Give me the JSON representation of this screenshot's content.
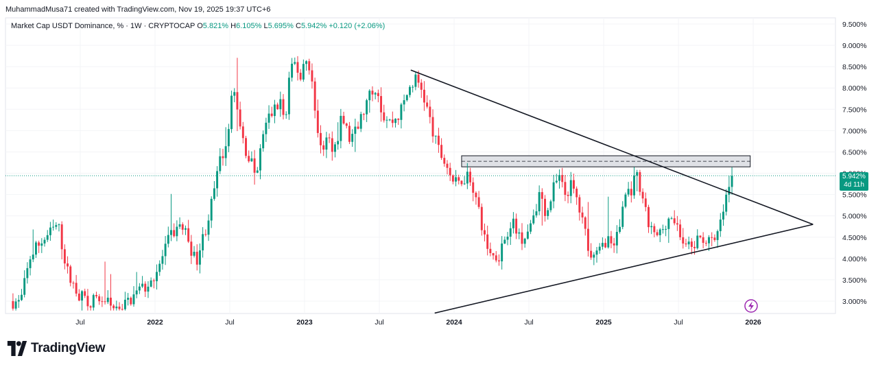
{
  "credit": "MuhammadMusa71 created with TradingView.com, Nov 19, 2025 19:37 UTC+6",
  "legend": {
    "symbol": "Market Cap USDT Dominance, % · 1W · CRYPTOCAP",
    "open_label": "O",
    "open": "5.821%",
    "high_label": "H",
    "high": "6.105%",
    "low_label": "L",
    "low": "5.695%",
    "close_label": "C",
    "close": "5.942%",
    "change": "+0.120 (+2.06%)"
  },
  "price_badge": {
    "price": "5.942%",
    "countdown": "4d 11h"
  },
  "brand": "TradingView",
  "colors": {
    "up": "#089981",
    "down": "#f23645",
    "line": "#131722",
    "zone_fill": "#d1d4dc",
    "lightning": "#9c27b0"
  },
  "icons": {
    "lightning": "lightning-icon",
    "logo": "tradingview-logo-icon"
  },
  "chart_data": {
    "type": "candlestick",
    "title": "Market Cap USDT Dominance, % · 1W · CRYPTOCAP",
    "y_unit": "%",
    "ylim": [
      2.8,
      9.75
    ],
    "y_ticks": [
      "9.500%",
      "9.000%",
      "8.500%",
      "8.000%",
      "7.500%",
      "7.000%",
      "6.500%",
      "6.000%",
      "5.500%",
      "5.000%",
      "4.500%",
      "4.000%",
      "3.500%",
      "3.000%"
    ],
    "y_tick_values": [
      9.5,
      9.0,
      8.5,
      8.0,
      7.5,
      7.0,
      6.5,
      6.0,
      5.5,
      5.0,
      4.5,
      4.0,
      3.5,
      3.0
    ],
    "x_ticks": [
      {
        "label": "Jul",
        "t": 2021.5,
        "bold": false
      },
      {
        "label": "2022",
        "t": 2022.0,
        "bold": true
      },
      {
        "label": "Jul",
        "t": 2022.5,
        "bold": false
      },
      {
        "label": "2023",
        "t": 2023.0,
        "bold": true
      },
      {
        "label": "Jul",
        "t": 2023.5,
        "bold": false
      },
      {
        "label": "2024",
        "t": 2024.0,
        "bold": true
      },
      {
        "label": "Jul",
        "t": 2024.5,
        "bold": false
      },
      {
        "label": "2025",
        "t": 2025.0,
        "bold": true
      },
      {
        "label": "Jul",
        "t": 2025.5,
        "bold": false
      },
      {
        "label": "2026",
        "t": 2026.0,
        "bold": true
      }
    ],
    "xlim": [
      2021.0,
      2026.55
    ],
    "last_price": 5.942,
    "path_start": 2021.05,
    "path_end": 2025.87,
    "path": [
      [
        2021.05,
        3.0
      ],
      [
        2021.1,
        2.95
      ],
      [
        2021.17,
        4.1
      ],
      [
        2021.24,
        4.4
      ],
      [
        2021.3,
        4.6
      ],
      [
        2021.35,
        4.8
      ],
      [
        2021.42,
        3.6
      ],
      [
        2021.5,
        3.1
      ],
      [
        2021.58,
        3.0
      ],
      [
        2021.65,
        3.05
      ],
      [
        2021.72,
        2.85
      ],
      [
        2021.8,
        2.92
      ],
      [
        2021.88,
        3.2
      ],
      [
        2021.95,
        3.4
      ],
      [
        2022.02,
        3.75
      ],
      [
        2022.1,
        4.5
      ],
      [
        2022.17,
        4.8
      ],
      [
        2022.22,
        4.5
      ],
      [
        2022.27,
        3.9
      ],
      [
        2022.33,
        4.6
      ],
      [
        2022.38,
        5.3
      ],
      [
        2022.43,
        6.2
      ],
      [
        2022.48,
        6.8
      ],
      [
        2022.52,
        8.1
      ],
      [
        2022.56,
        7.2
      ],
      [
        2022.6,
        6.6
      ],
      [
        2022.65,
        6.2
      ],
      [
        2022.68,
        5.9
      ],
      [
        2022.72,
        6.9
      ],
      [
        2022.76,
        7.3
      ],
      [
        2022.8,
        7.5
      ],
      [
        2022.84,
        7.7
      ],
      [
        2022.87,
        7.1
      ],
      [
        2022.9,
        8.3
      ],
      [
        2022.94,
        8.6
      ],
      [
        2022.97,
        8.2
      ],
      [
        2023.0,
        8.7
      ],
      [
        2023.04,
        8.5
      ],
      [
        2023.08,
        7.0
      ],
      [
        2023.12,
        6.6
      ],
      [
        2023.15,
        6.8
      ],
      [
        2023.2,
        6.6
      ],
      [
        2023.25,
        7.3
      ],
      [
        2023.3,
        6.8
      ],
      [
        2023.35,
        7.0
      ],
      [
        2023.4,
        7.5
      ],
      [
        2023.45,
        7.9
      ],
      [
        2023.48,
        8.1
      ],
      [
        2023.52,
        7.4
      ],
      [
        2023.57,
        7.2
      ],
      [
        2023.62,
        7.3
      ],
      [
        2023.66,
        7.6
      ],
      [
        2023.7,
        8.0
      ],
      [
        2023.74,
        8.2
      ],
      [
        2023.78,
        8.0
      ],
      [
        2023.82,
        7.5
      ],
      [
        2023.86,
        6.9
      ],
      [
        2023.9,
        6.5
      ],
      [
        2023.95,
        6.2
      ],
      [
        2023.98,
        5.9
      ],
      [
        2024.02,
        5.7
      ],
      [
        2024.06,
        5.9
      ],
      [
        2024.1,
        6.0
      ],
      [
        2024.14,
        5.5
      ],
      [
        2024.18,
        4.8
      ],
      [
        2024.22,
        4.3
      ],
      [
        2024.26,
        4.05
      ],
      [
        2024.3,
        4.1
      ],
      [
        2024.34,
        4.5
      ],
      [
        2024.38,
        4.9
      ],
      [
        2024.42,
        4.6
      ],
      [
        2024.46,
        4.5
      ],
      [
        2024.5,
        4.7
      ],
      [
        2024.54,
        5.2
      ],
      [
        2024.58,
        5.5
      ],
      [
        2024.62,
        5.0
      ],
      [
        2024.66,
        5.6
      ],
      [
        2024.7,
        5.9
      ],
      [
        2024.74,
        5.5
      ],
      [
        2024.78,
        5.7
      ],
      [
        2024.82,
        5.4
      ],
      [
        2024.86,
        4.8
      ],
      [
        2024.9,
        4.3
      ],
      [
        2024.94,
        4.0
      ],
      [
        2024.98,
        4.2
      ],
      [
        2025.02,
        4.5
      ],
      [
        2025.06,
        4.3
      ],
      [
        2025.1,
        4.6
      ],
      [
        2025.14,
        5.5
      ],
      [
        2025.18,
        5.6
      ],
      [
        2025.22,
        5.9
      ],
      [
        2025.26,
        5.3
      ],
      [
        2025.3,
        4.8
      ],
      [
        2025.34,
        4.5
      ],
      [
        2025.38,
        4.6
      ],
      [
        2025.42,
        4.9
      ],
      [
        2025.46,
        5.0
      ],
      [
        2025.5,
        4.7
      ],
      [
        2025.54,
        4.3
      ],
      [
        2025.58,
        4.2
      ],
      [
        2025.62,
        4.4
      ],
      [
        2025.66,
        4.5
      ],
      [
        2025.7,
        4.4
      ],
      [
        2025.74,
        4.3
      ],
      [
        2025.78,
        4.8
      ],
      [
        2025.82,
        5.4
      ],
      [
        2025.85,
        5.8
      ],
      [
        2025.87,
        5.942
      ]
    ],
    "trendlines": [
      {
        "name": "descending-trendline",
        "points": [
          [
            2023.71,
            8.42
          ],
          [
            2026.4,
            4.8
          ]
        ]
      },
      {
        "name": "ascending-trendline",
        "points": [
          [
            2023.87,
            2.72
          ],
          [
            2026.4,
            4.8
          ]
        ]
      }
    ],
    "resistance_zone": {
      "x_range": [
        2024.05,
        2025.98
      ],
      "y_range": [
        6.15,
        6.41
      ],
      "mid": 6.28
    },
    "last_price_line": 5.942
  }
}
